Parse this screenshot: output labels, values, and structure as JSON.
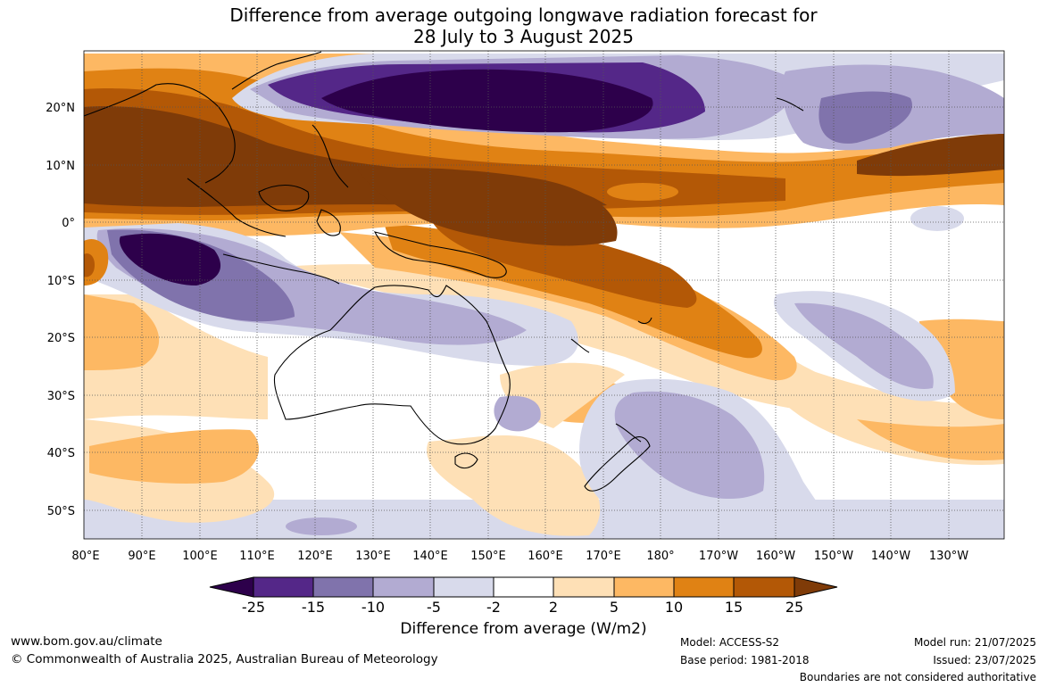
{
  "title": {
    "line1": "Difference from average outgoing longwave radiation forecast for",
    "line2": "28 July to 3 August 2025"
  },
  "map": {
    "lat_labels": [
      "20°N",
      "10°N",
      "0°",
      "10°S",
      "20°S",
      "30°S",
      "40°S",
      "50°S"
    ],
    "lon_labels": [
      "80°E",
      "90°E",
      "100°E",
      "110°E",
      "120°E",
      "130°E",
      "140°E",
      "150°E",
      "160°E",
      "170°E",
      "180°",
      "170°W",
      "160°W",
      "150°W",
      "140°W",
      "130°W"
    ],
    "frame_color": "#000000"
  },
  "colorbar": {
    "title": "Difference from average (W/m2)",
    "tick_labels": [
      "-25",
      "-15",
      "-10",
      "-5",
      "-2",
      "2",
      "5",
      "10",
      "15",
      "25"
    ],
    "colors": {
      "below_min": "#2d004b",
      "bins": [
        "#542788",
        "#8073ac",
        "#b2abd2",
        "#d8daeb",
        "#ffffff",
        "#fee0b6",
        "#fdb863",
        "#e08214",
        "#b35806"
      ],
      "above_max": "#7f3b08"
    }
  },
  "footer": {
    "url": "www.bom.gov.au/climate",
    "copyright": "© Commonwealth of Australia 2025, Australian Bureau of Meteorology",
    "model": "Model: ACCESS-S2",
    "base_period": "Base period: 1981-2018",
    "model_run": "Model run: 21/07/2025",
    "issued": "Issued: 23/07/2025",
    "disclaimer": "Boundaries are not considered authoritative"
  }
}
